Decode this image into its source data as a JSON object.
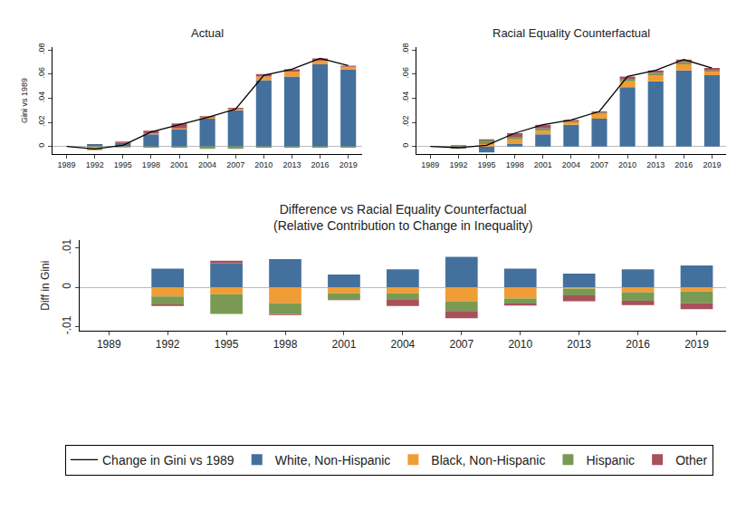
{
  "chart_data": [
    {
      "type": "bar",
      "title": "Actual",
      "y_label": "Gini vs 1989",
      "stacked": true,
      "grid": false,
      "legend": "bottom",
      "x": [
        1989,
        1992,
        1995,
        1998,
        2001,
        2004,
        2007,
        2010,
        2013,
        2016,
        2019
      ],
      "xlim": [
        1987.5,
        2020.5
      ],
      "xticks": [
        1989,
        1992,
        1995,
        1998,
        2001,
        2004,
        2007,
        2010,
        2013,
        2016,
        2019
      ],
      "ylim": [
        -0.006,
        0.082
      ],
      "yticks": [
        0,
        {
          "value": 0.02,
          "label": ".02"
        },
        {
          "value": 0.04,
          "label": ".04"
        },
        {
          "value": 0.06,
          "label": ".06"
        },
        {
          "value": 0.08,
          "label": ".08"
        }
      ],
      "series": [
        {
          "name": "Change in Gini vs 1989",
          "type": "line",
          "color": "#000000",
          "values": [
            0,
            -0.002,
            0.001,
            0.012,
            0.018,
            0.024,
            0.031,
            0.059,
            0.064,
            0.073,
            0.067
          ]
        },
        {
          "name": "White, Non-Hispanic",
          "color": "#44709d",
          "values": [
            null,
            0.002,
            0.003,
            0.01,
            0.014,
            0.023,
            0.03,
            0.055,
            0.058,
            0.068,
            0.064
          ]
        },
        {
          "name": "Black, Non-Hispanic",
          "color": "#f09d35",
          "values": [
            null,
            -0.002,
            -0.001,
            0.001,
            0.001,
            0.001,
            0.001,
            0.003,
            0.004,
            0.003,
            0.002
          ]
        },
        {
          "name": "Hispanic",
          "color": "#7a9a53",
          "values": [
            null,
            -0.001,
            0.0,
            -0.001,
            -0.001,
            -0.002,
            -0.002,
            -0.001,
            -0.001,
            -0.001,
            -0.001
          ]
        },
        {
          "name": "Other",
          "color": "#a9505b",
          "values": [
            null,
            0.0,
            0.001,
            0.002,
            0.004,
            0.001,
            0.001,
            0.002,
            0.002,
            0.002,
            0.001
          ]
        }
      ]
    },
    {
      "type": "bar",
      "title": "Racial Equality Counterfactual",
      "stacked": true,
      "grid": false,
      "x": [
        1989,
        1992,
        1995,
        1998,
        2001,
        2004,
        2007,
        2010,
        2013,
        2016,
        2019
      ],
      "xlim": [
        1987.5,
        2020.5
      ],
      "xticks": [
        1989,
        1992,
        1995,
        1998,
        2001,
        2004,
        2007,
        2010,
        2013,
        2016,
        2019
      ],
      "ylim": [
        -0.006,
        0.082
      ],
      "yticks": [
        0,
        {
          "value": 0.02,
          "label": ".02"
        },
        {
          "value": 0.04,
          "label": ".04"
        },
        {
          "value": 0.06,
          "label": ".06"
        },
        {
          "value": 0.08,
          "label": ".08"
        }
      ],
      "series": [
        {
          "name": "Change in Gini vs 1989",
          "type": "line",
          "color": "#000000",
          "values": [
            0,
            -0.001,
            0.001,
            0.011,
            0.018,
            0.022,
            0.029,
            0.058,
            0.063,
            0.072,
            0.065
          ]
        },
        {
          "name": "White, Non-Hispanic",
          "color": "#44709d",
          "values": [
            null,
            0.001,
            -0.005,
            0.002,
            0.01,
            0.018,
            0.023,
            0.049,
            0.054,
            0.063,
            0.059
          ]
        },
        {
          "name": "Black, Non-Hispanic",
          "color": "#f09d35",
          "values": [
            null,
            -0.001,
            0.002,
            0.004,
            0.003,
            0.002,
            0.004,
            0.005,
            0.005,
            0.005,
            0.003
          ]
        },
        {
          "name": "Hispanic",
          "color": "#7a9a53",
          "values": [
            null,
            -0.001,
            0.003,
            0.002,
            0.002,
            0.001,
            0.001,
            0.002,
            0.002,
            0.002,
            0.001
          ]
        },
        {
          "name": "Other",
          "color": "#a9505b",
          "values": [
            null,
            0.0,
            0.001,
            0.003,
            0.003,
            0.001,
            0.001,
            0.002,
            0.002,
            0.002,
            0.002
          ]
        }
      ]
    },
    {
      "type": "bar",
      "title": "Difference vs Racial Equality Counterfactual",
      "subtitle": "(Relative Contribution to Change in Inequality)",
      "y_label": "Diff in Gini",
      "stacked": true,
      "grid": false,
      "x": [
        1989,
        1992,
        1995,
        1998,
        2001,
        2004,
        2007,
        2010,
        2013,
        2016,
        2019
      ],
      "xlim": [
        1987.5,
        2020.5
      ],
      "xticks": [
        1989,
        1992,
        1995,
        1998,
        2001,
        2004,
        2007,
        2010,
        2013,
        2016,
        2019
      ],
      "ylim": [
        -0.011,
        0.012
      ],
      "yticks": [
        {
          "value": -0.01,
          "label": "-.01"
        },
        0,
        {
          "value": 0.01,
          "label": ".01"
        }
      ],
      "series": [
        {
          "name": "White, Non-Hispanic",
          "color": "#44709d",
          "values": [
            null,
            0.0048,
            0.0062,
            0.0072,
            0.0033,
            0.0046,
            0.0078,
            0.0048,
            0.0035,
            0.0046,
            0.0056
          ]
        },
        {
          "name": "Black, Non-Hispanic",
          "color": "#f09d35",
          "values": [
            null,
            -0.0023,
            -0.0017,
            -0.004,
            -0.0015,
            -0.0015,
            -0.0035,
            -0.0028,
            -0.0003,
            -0.0012,
            -0.001
          ]
        },
        {
          "name": "Hispanic",
          "color": "#7a9a53",
          "values": [
            null,
            -0.002,
            -0.005,
            -0.0027,
            -0.0015,
            -0.0015,
            -0.0025,
            -0.0013,
            -0.0017,
            -0.0022,
            -0.003
          ]
        },
        {
          "name": "Other",
          "color": "#a9505b",
          "values": [
            null,
            -0.0004,
            0.0006,
            -0.0003,
            -0.0002,
            -0.0017,
            -0.0018,
            -0.0005,
            -0.0015,
            -0.0011,
            -0.0015
          ]
        }
      ]
    }
  ]
}
